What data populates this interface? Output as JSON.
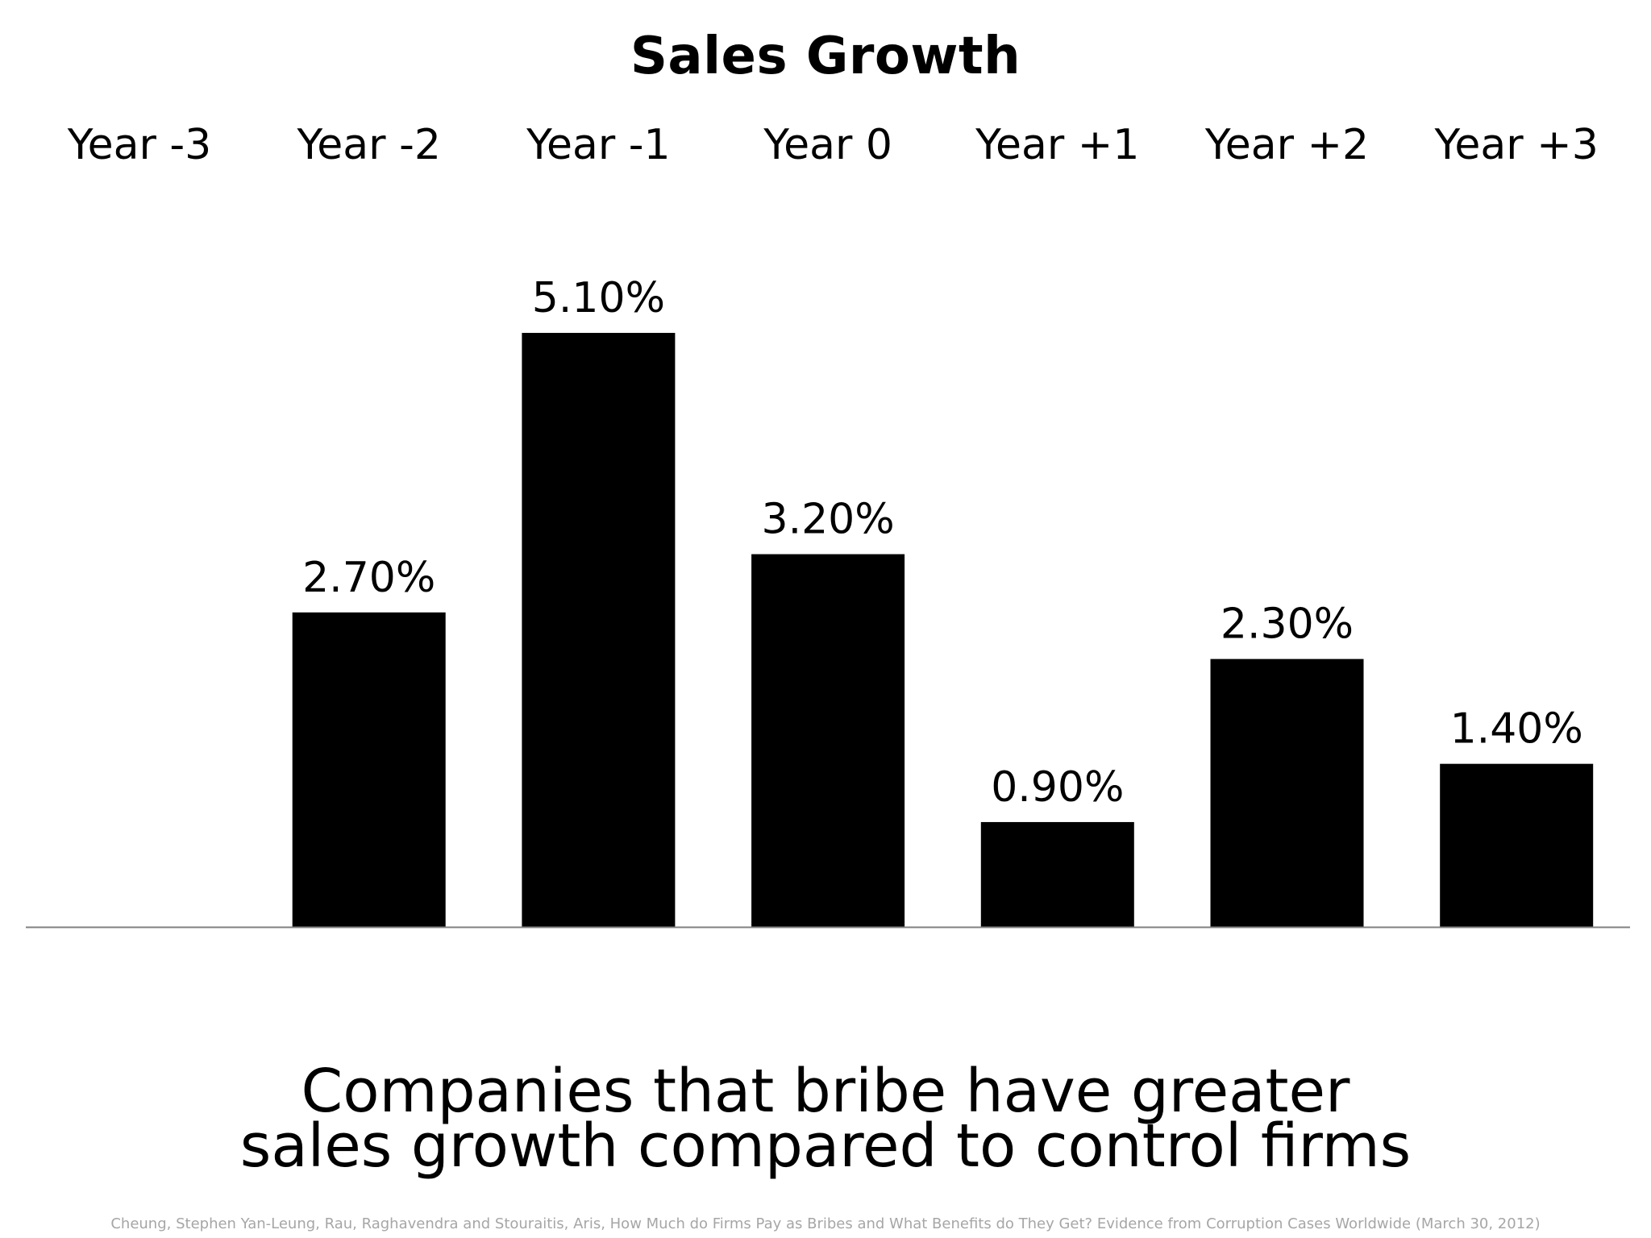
{
  "chart_data": {
    "type": "bar",
    "title": "Sales Growth",
    "categories": [
      "Year -3",
      "Year -2",
      "Year -1",
      "Year 0",
      "Year +1",
      "Year +2",
      "Year +3"
    ],
    "values": [
      null,
      2.7,
      5.1,
      3.2,
      0.9,
      2.3,
      1.4
    ],
    "value_labels": [
      "",
      "2.70%",
      "5.10%",
      "3.20%",
      "0.90%",
      "2.30%",
      "1.40%"
    ],
    "unit": "%",
    "xlabel": "",
    "ylabel": "",
    "ylim": [
      0,
      5.1
    ],
    "category_labels_position": "top",
    "grid": false,
    "legend": "none",
    "colors": {
      "bar": "#000000",
      "baseline": "#808080"
    }
  },
  "caption": {
    "line1": "Companies that bribe have greater",
    "line2": "sales growth compared to control firms"
  },
  "citation": "Cheung, Stephen Yan-Leung, Rau, Raghavendra and Stouraitis, Aris, How Much do Firms Pay as Bribes and What Benefits do They Get? Evidence from Corruption Cases Worldwide (March 30, 2012)"
}
